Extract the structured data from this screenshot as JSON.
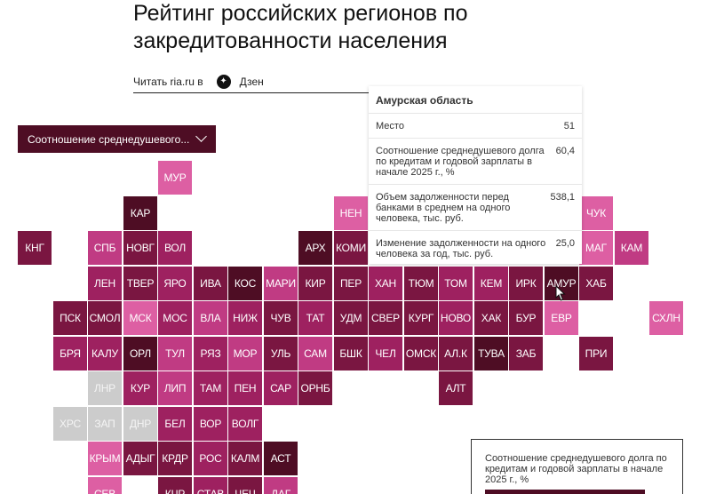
{
  "header": {
    "title": "Рейтинг российских регионов по закредитованности населения",
    "read_label": "Читать ria.ru в",
    "dzen_label": "Дзен"
  },
  "dropdown": {
    "label": "Соотношение среднедушевого..."
  },
  "colors": {
    "c1": "#4e0d24",
    "c2": "#7a1641",
    "c3": "#9e2160",
    "c4": "#c03b83",
    "c5": "#dd5fa3",
    "gray": "#cccccc"
  },
  "tiles": [
    {
      "label": "МУР",
      "col": 4,
      "row": 0,
      "c": "c5"
    },
    {
      "label": "КАР",
      "col": 3,
      "row": 1,
      "c": "c1"
    },
    {
      "label": "НЕН",
      "col": 9,
      "row": 1,
      "c": "c5"
    },
    {
      "label": "ЧУК",
      "col": 16,
      "row": 1,
      "c": "c5"
    },
    {
      "label": "КНГ",
      "col": 0,
      "row": 2,
      "c": "c2"
    },
    {
      "label": "СПБ",
      "col": 2,
      "row": 2,
      "c": "c4"
    },
    {
      "label": "НОВГ",
      "col": 3,
      "row": 2,
      "c": "c2"
    },
    {
      "label": "ВОЛ",
      "col": 4,
      "row": 2,
      "c": "c3"
    },
    {
      "label": "АРХ",
      "col": 8,
      "row": 2,
      "c": "c1"
    },
    {
      "label": "КОМИ",
      "col": 9,
      "row": 2,
      "c": "c2"
    },
    {
      "label": "МАГ",
      "col": 16,
      "row": 2,
      "c": "c5"
    },
    {
      "label": "КАМ",
      "col": 17,
      "row": 2,
      "c": "c4"
    },
    {
      "label": "ЛЕН",
      "col": 2,
      "row": 3,
      "c": "c3"
    },
    {
      "label": "ТВЕР",
      "col": 3,
      "row": 3,
      "c": "c2"
    },
    {
      "label": "ЯРО",
      "col": 4,
      "row": 3,
      "c": "c3"
    },
    {
      "label": "ИВА",
      "col": 5,
      "row": 3,
      "c": "c2"
    },
    {
      "label": "КОС",
      "col": 6,
      "row": 3,
      "c": "c1"
    },
    {
      "label": "МАРИ",
      "col": 7,
      "row": 3,
      "c": "c4"
    },
    {
      "label": "КИР",
      "col": 8,
      "row": 3,
      "c": "c2"
    },
    {
      "label": "ПЕР",
      "col": 9,
      "row": 3,
      "c": "c2"
    },
    {
      "label": "ХАН",
      "col": 10,
      "row": 3,
      "c": "c3"
    },
    {
      "label": "ТЮМ",
      "col": 11,
      "row": 3,
      "c": "c2"
    },
    {
      "label": "ТОМ",
      "col": 12,
      "row": 3,
      "c": "c3"
    },
    {
      "label": "КЕМ",
      "col": 13,
      "row": 3,
      "c": "c3"
    },
    {
      "label": "ИРК",
      "col": 14,
      "row": 3,
      "c": "c2"
    },
    {
      "label": "АМУР",
      "col": 15,
      "row": 3,
      "c": "c1"
    },
    {
      "label": "ХАБ",
      "col": 16,
      "row": 3,
      "c": "c2"
    },
    {
      "label": "ПСК",
      "col": 1,
      "row": 4,
      "c": "c2"
    },
    {
      "label": "СМОЛ",
      "col": 2,
      "row": 4,
      "c": "c2"
    },
    {
      "label": "МСК",
      "col": 3,
      "row": 4,
      "c": "c5"
    },
    {
      "label": "МОС",
      "col": 4,
      "row": 4,
      "c": "c3"
    },
    {
      "label": "ВЛА",
      "col": 5,
      "row": 4,
      "c": "c4"
    },
    {
      "label": "НИЖ",
      "col": 6,
      "row": 4,
      "c": "c3"
    },
    {
      "label": "ЧУВ",
      "col": 7,
      "row": 4,
      "c": "c2"
    },
    {
      "label": "ТАТ",
      "col": 8,
      "row": 4,
      "c": "c3"
    },
    {
      "label": "УДМ",
      "col": 9,
      "row": 4,
      "c": "c2"
    },
    {
      "label": "СВЕР",
      "col": 10,
      "row": 4,
      "c": "c2"
    },
    {
      "label": "КУРГ",
      "col": 11,
      "row": 4,
      "c": "c2"
    },
    {
      "label": "НОВО",
      "col": 12,
      "row": 4,
      "c": "c3"
    },
    {
      "label": "ХАК",
      "col": 13,
      "row": 4,
      "c": "c2"
    },
    {
      "label": "БУР",
      "col": 14,
      "row": 4,
      "c": "c2"
    },
    {
      "label": "ЕВР",
      "col": 15,
      "row": 4,
      "c": "c5"
    },
    {
      "label": "СХЛН",
      "col": 18,
      "row": 4,
      "c": "c5"
    },
    {
      "label": "БРЯ",
      "col": 1,
      "row": 5,
      "c": "c3"
    },
    {
      "label": "КАЛУ",
      "col": 2,
      "row": 5,
      "c": "c3"
    },
    {
      "label": "ОРЛ",
      "col": 3,
      "row": 5,
      "c": "c1"
    },
    {
      "label": "ТУЛ",
      "col": 4,
      "row": 5,
      "c": "c4"
    },
    {
      "label": "РЯЗ",
      "col": 5,
      "row": 5,
      "c": "c3"
    },
    {
      "label": "МОР",
      "col": 6,
      "row": 5,
      "c": "c4"
    },
    {
      "label": "УЛЬ",
      "col": 7,
      "row": 5,
      "c": "c2"
    },
    {
      "label": "САМ",
      "col": 8,
      "row": 5,
      "c": "c4"
    },
    {
      "label": "БШК",
      "col": 9,
      "row": 5,
      "c": "c2"
    },
    {
      "label": "ЧЕЛ",
      "col": 10,
      "row": 5,
      "c": "c3"
    },
    {
      "label": "ОМСК",
      "col": 11,
      "row": 5,
      "c": "c2"
    },
    {
      "label": "АЛ.К",
      "col": 12,
      "row": 5,
      "c": "c2"
    },
    {
      "label": "ТУВА",
      "col": 13,
      "row": 5,
      "c": "c1"
    },
    {
      "label": "ЗАБ",
      "col": 14,
      "row": 5,
      "c": "c2"
    },
    {
      "label": "ПРИ",
      "col": 16,
      "row": 5,
      "c": "c2"
    },
    {
      "label": "ЛНР",
      "col": 2,
      "row": 6,
      "c": "gray"
    },
    {
      "label": "КУР",
      "col": 3,
      "row": 6,
      "c": "c3"
    },
    {
      "label": "ЛИП",
      "col": 4,
      "row": 6,
      "c": "c4"
    },
    {
      "label": "ТАМ",
      "col": 5,
      "row": 6,
      "c": "c3"
    },
    {
      "label": "ПЕН",
      "col": 6,
      "row": 6,
      "c": "c3"
    },
    {
      "label": "САР",
      "col": 7,
      "row": 6,
      "c": "c3"
    },
    {
      "label": "ОРНБ",
      "col": 8,
      "row": 6,
      "c": "c2"
    },
    {
      "label": "АЛТ",
      "col": 12,
      "row": 6,
      "c": "c2"
    },
    {
      "label": "ХРС",
      "col": 1,
      "row": 7,
      "c": "gray"
    },
    {
      "label": "ЗАП",
      "col": 2,
      "row": 7,
      "c": "gray"
    },
    {
      "label": "ДНР",
      "col": 3,
      "row": 7,
      "c": "gray"
    },
    {
      "label": "БЕЛ",
      "col": 4,
      "row": 7,
      "c": "c3"
    },
    {
      "label": "ВОР",
      "col": 5,
      "row": 7,
      "c": "c3"
    },
    {
      "label": "ВОЛГ",
      "col": 6,
      "row": 7,
      "c": "c3"
    },
    {
      "label": "КРЫМ",
      "col": 2,
      "row": 8,
      "c": "c5"
    },
    {
      "label": "АДЫГ",
      "col": 3,
      "row": 8,
      "c": "c2"
    },
    {
      "label": "КРДР",
      "col": 4,
      "row": 8,
      "c": "c2"
    },
    {
      "label": "РОС",
      "col": 5,
      "row": 8,
      "c": "c3"
    },
    {
      "label": "КАЛМ",
      "col": 6,
      "row": 8,
      "c": "c2"
    },
    {
      "label": "АСТ",
      "col": 7,
      "row": 8,
      "c": "c1"
    },
    {
      "label": "СЕВ",
      "col": 2,
      "row": 9,
      "c": "c5"
    },
    {
      "label": "КЧР",
      "col": 4,
      "row": 9,
      "c": "c2"
    },
    {
      "label": "СТАВ",
      "col": 5,
      "row": 9,
      "c": "c3"
    },
    {
      "label": "ЧЕЧ",
      "col": 6,
      "row": 9,
      "c": "c2"
    },
    {
      "label": "ДАГ",
      "col": 7,
      "row": 9,
      "c": "c4"
    }
  ],
  "tooltip": {
    "title": "Амурская область",
    "rows": [
      {
        "label": "Место",
        "value": "51"
      },
      {
        "label": "Соотношение среднедушевого долга по кредитам и годовой зарплаты в начале 2025 г., %",
        "value": "60,4"
      },
      {
        "label": "Объем задолженности перед банками в среднем на одного человека, тыс. руб.",
        "value": "538,1"
      },
      {
        "label": "Изменение задолженности на одного человека за год, тыс. руб.",
        "value": "25,0"
      }
    ]
  },
  "legend": {
    "text": "Соотношение среднедушевого долга по кредитам и годовой зарплаты в начале 2025 г., %"
  }
}
